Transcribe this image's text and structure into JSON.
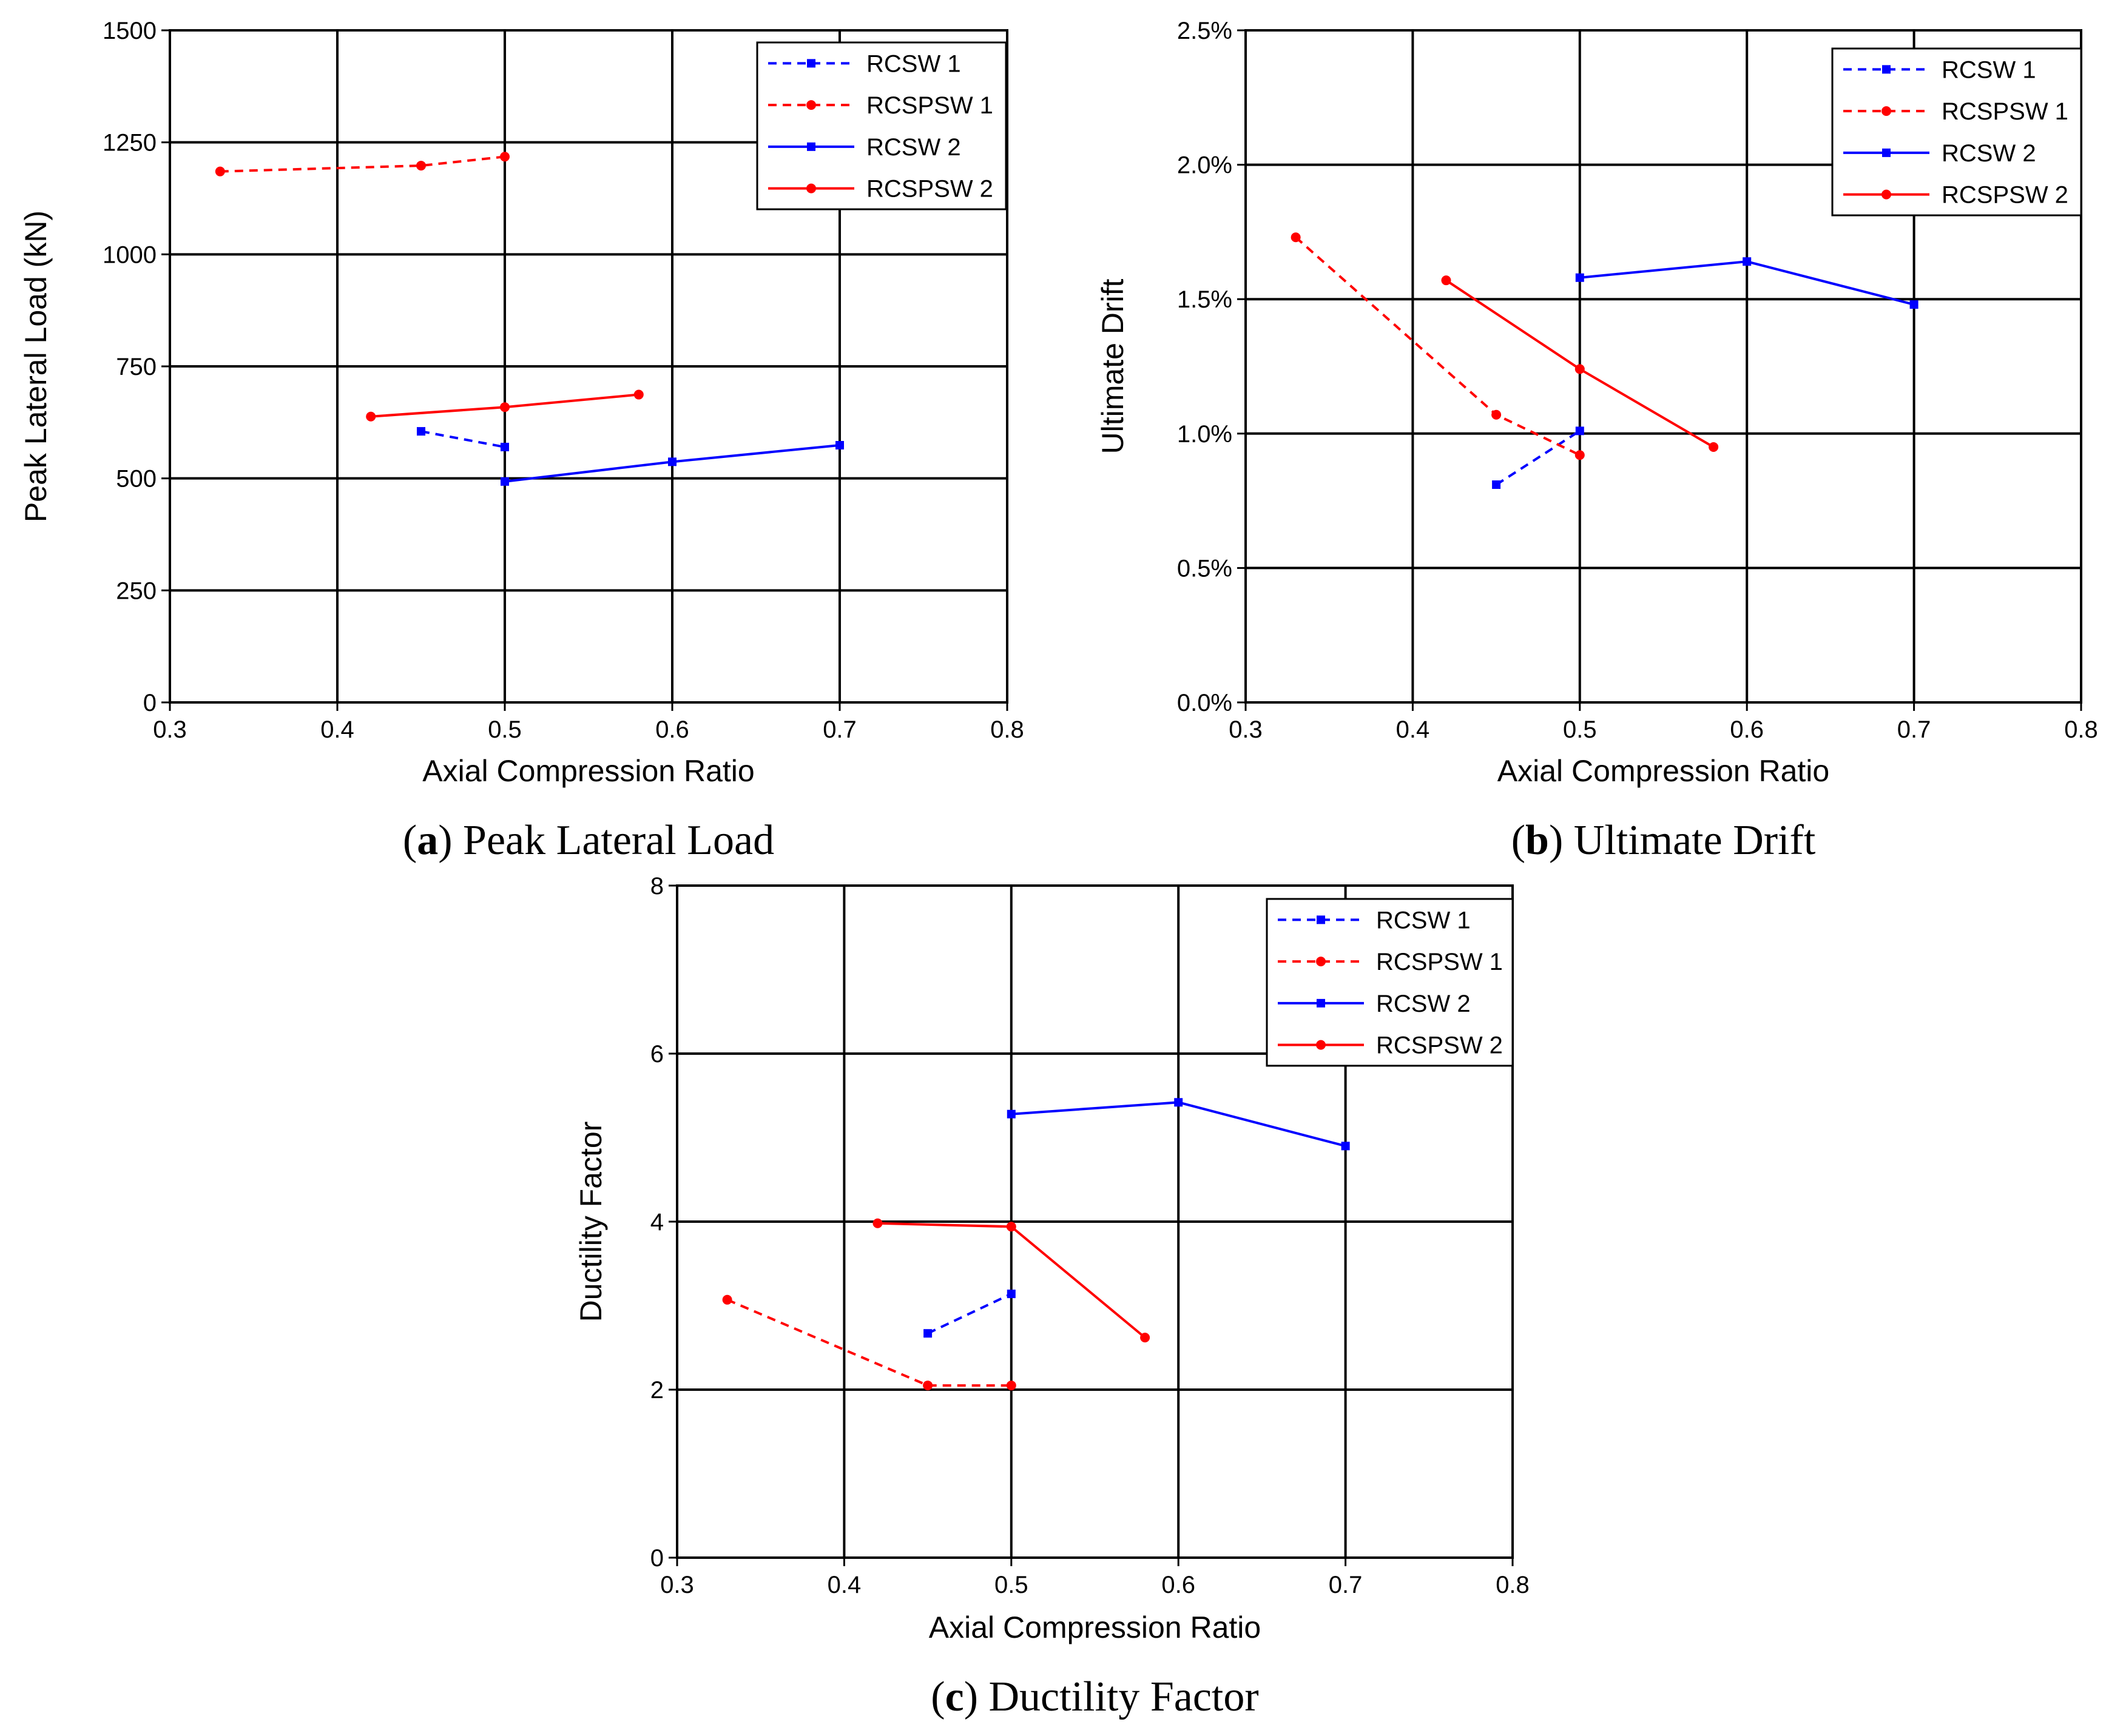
{
  "chart_data": [
    {
      "type": "line",
      "caption_letter": "a",
      "caption_text": "Peak Lateral Load",
      "xlabel": "Axial Compression Ratio",
      "ylabel": "Peak Lateral Load (kN)",
      "xlim": [
        0.3,
        0.8
      ],
      "ylim": [
        0,
        1500
      ],
      "xticks": [
        0.3,
        0.4,
        0.5,
        0.6,
        0.7,
        0.8
      ],
      "xtick_labels": [
        "0.3",
        "0.4",
        "0.5",
        "0.6",
        "0.7",
        "0.8"
      ],
      "yticks": [
        0,
        250,
        500,
        750,
        1000,
        1250,
        1500
      ],
      "ytick_labels": [
        "0",
        "250",
        "500",
        "750",
        "1000",
        "1250",
        "1500"
      ],
      "grid": true,
      "legend_position": "top-right",
      "series": [
        {
          "name": "RCSW 1",
          "color": "#0000ff",
          "dashed": true,
          "marker": "square",
          "points": [
            [
              0.45,
              605
            ],
            [
              0.5,
              570
            ]
          ]
        },
        {
          "name": "RCSPSW 1",
          "color": "#ff0000",
          "dashed": true,
          "marker": "circle",
          "points": [
            [
              0.33,
              1185
            ],
            [
              0.45,
              1198
            ],
            [
              0.5,
              1218
            ]
          ]
        },
        {
          "name": "RCSW 2",
          "color": "#0000ff",
          "dashed": false,
          "marker": "square",
          "points": [
            [
              0.5,
              493
            ],
            [
              0.6,
              537
            ],
            [
              0.7,
              574
            ]
          ]
        },
        {
          "name": "RCSPSW 2",
          "color": "#ff0000",
          "dashed": false,
          "marker": "circle",
          "points": [
            [
              0.42,
              638
            ],
            [
              0.5,
              659
            ],
            [
              0.58,
              687
            ]
          ]
        }
      ]
    },
    {
      "type": "line",
      "caption_letter": "b",
      "caption_text": "Ultimate Drift",
      "xlabel": "Axial Compression Ratio",
      "ylabel": "Ultimate Drift",
      "xlim": [
        0.3,
        0.8
      ],
      "ylim": [
        0,
        0.025
      ],
      "xticks": [
        0.3,
        0.4,
        0.5,
        0.6,
        0.7,
        0.8
      ],
      "xtick_labels": [
        "0.3",
        "0.4",
        "0.5",
        "0.6",
        "0.7",
        "0.8"
      ],
      "yticks": [
        0,
        0.005,
        0.01,
        0.015,
        0.02,
        0.025
      ],
      "ytick_labels": [
        "0.0%",
        "0.5%",
        "1.0%",
        "1.5%",
        "2.0%",
        "2.5%"
      ],
      "grid": true,
      "legend_position": "top-right",
      "series": [
        {
          "name": "RCSW 1",
          "color": "#0000ff",
          "dashed": true,
          "marker": "square",
          "points": [
            [
              0.45,
              0.0081
            ],
            [
              0.5,
              0.0101
            ]
          ]
        },
        {
          "name": "RCSPSW 1",
          "color": "#ff0000",
          "dashed": true,
          "marker": "circle",
          "points": [
            [
              0.33,
              0.0173
            ],
            [
              0.45,
              0.0107
            ],
            [
              0.5,
              0.0092
            ]
          ]
        },
        {
          "name": "RCSW 2",
          "color": "#0000ff",
          "dashed": false,
          "marker": "square",
          "points": [
            [
              0.5,
              0.0158
            ],
            [
              0.6,
              0.0164
            ],
            [
              0.7,
              0.0148
            ]
          ]
        },
        {
          "name": "RCSPSW 2",
          "color": "#ff0000",
          "dashed": false,
          "marker": "circle",
          "points": [
            [
              0.42,
              0.0157
            ],
            [
              0.5,
              0.0124
            ],
            [
              0.58,
              0.0095
            ]
          ]
        }
      ]
    },
    {
      "type": "line",
      "caption_letter": "c",
      "caption_text": "Ductility Factor",
      "xlabel": "Axial Compression Ratio",
      "ylabel": "Ductility Factor",
      "xlim": [
        0.3,
        0.8
      ],
      "ylim": [
        0,
        8
      ],
      "xticks": [
        0.3,
        0.4,
        0.5,
        0.6,
        0.7,
        0.8
      ],
      "xtick_labels": [
        "0.3",
        "0.4",
        "0.5",
        "0.6",
        "0.7",
        "0.8"
      ],
      "yticks": [
        0,
        2,
        4,
        6,
        8
      ],
      "ytick_labels": [
        "0",
        "2",
        "4",
        "6",
        "8"
      ],
      "grid": true,
      "legend_position": "top-right",
      "series": [
        {
          "name": "RCSW 1",
          "color": "#0000ff",
          "dashed": true,
          "marker": "square",
          "points": [
            [
              0.45,
              2.67
            ],
            [
              0.5,
              3.14
            ]
          ]
        },
        {
          "name": "RCSPSW 1",
          "color": "#ff0000",
          "dashed": true,
          "marker": "circle",
          "points": [
            [
              0.33,
              3.07
            ],
            [
              0.45,
              2.05
            ],
            [
              0.5,
              2.05
            ]
          ]
        },
        {
          "name": "RCSW 2",
          "color": "#0000ff",
          "dashed": false,
          "marker": "square",
          "points": [
            [
              0.5,
              5.28
            ],
            [
              0.6,
              5.42
            ],
            [
              0.7,
              4.9
            ]
          ]
        },
        {
          "name": "RCSPSW 2",
          "color": "#ff0000",
          "dashed": false,
          "marker": "circle",
          "points": [
            [
              0.42,
              3.98
            ],
            [
              0.5,
              3.94
            ],
            [
              0.58,
              2.62
            ]
          ]
        }
      ]
    }
  ]
}
